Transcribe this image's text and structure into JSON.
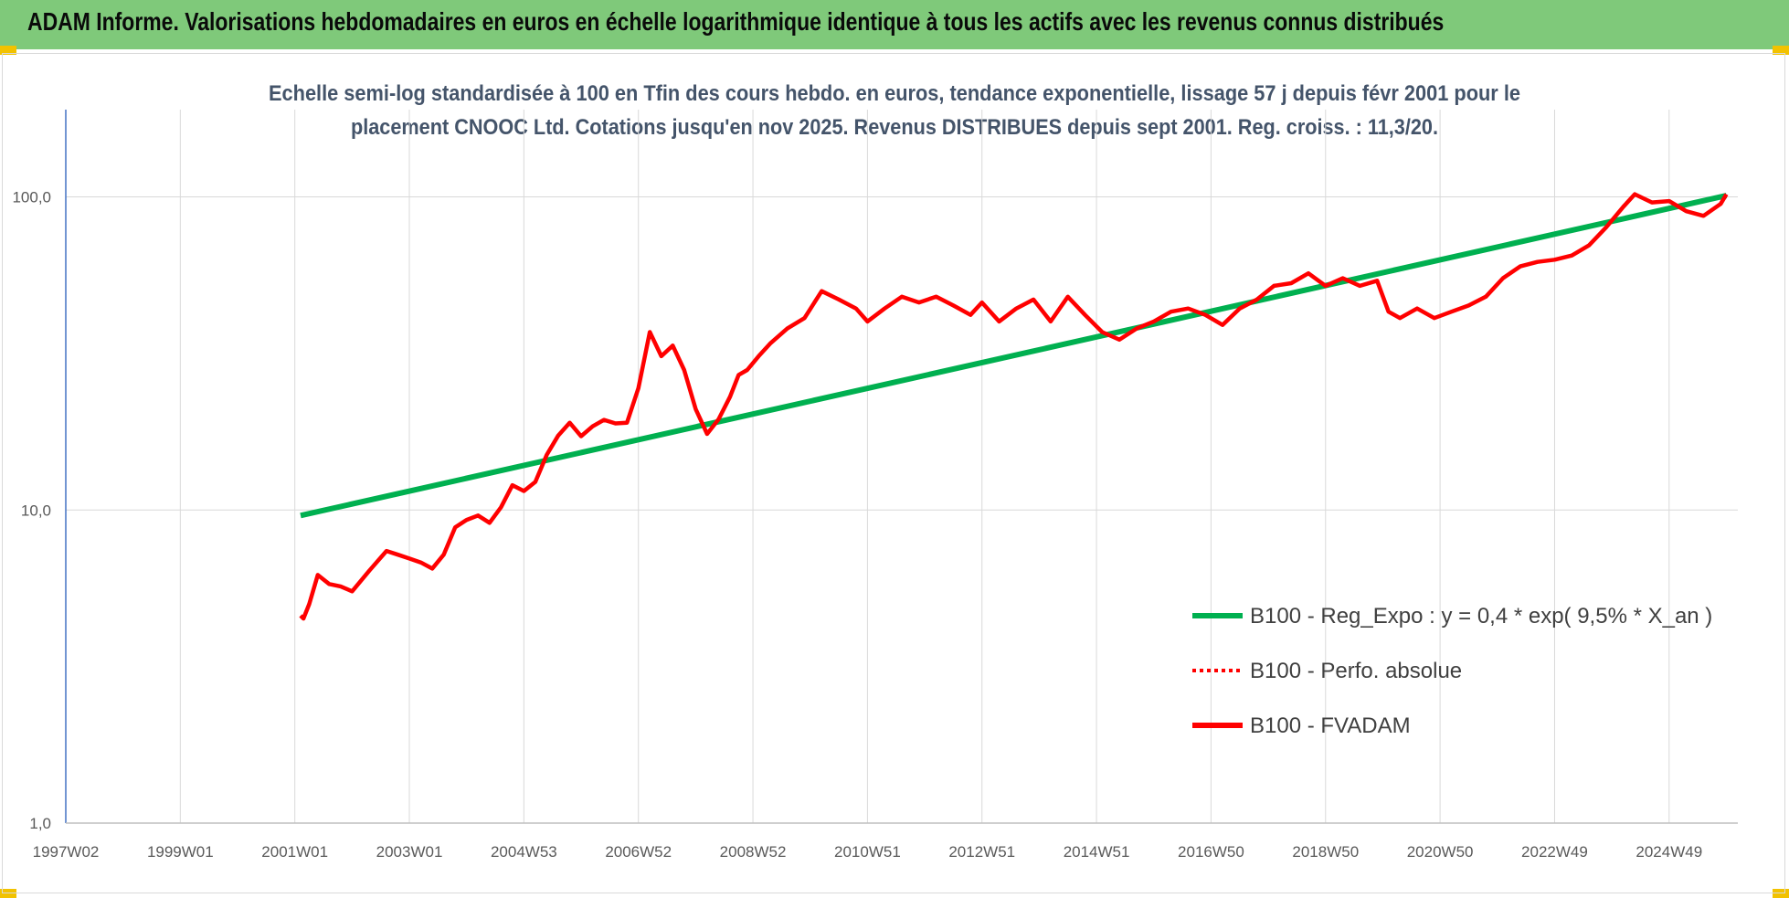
{
  "banner": {
    "title": "ADAM Informe. Valorisations hebdomadaires en euros en échelle logarithmique identique à tous les actifs avec les revenus connus distribués",
    "color": "#7fc97a"
  },
  "chart_data": {
    "type": "line",
    "title": "Echelle semi-log standardisée à 100 en Tfin des cours hebdo. en euros, tendance exponentielle, lissage 57 j depuis févr 2001 pour le placement CNOOC Ltd. Cotations jusqu'en nov 2025. Revenus DISTRIBUES depuis sept 2001. Reg. croiss. : 11,3/20.",
    "title_lines": [
      "Echelle semi-log standardisée à 100 en Tfin des cours hebdo. en euros, tendance exponentielle, lissage 57 j depuis févr 2001 pour le",
      "placement CNOOC Ltd. Cotations jusqu'en nov 2025. Revenus DISTRIBUES depuis sept 2001. Reg. croiss. : 11,3/20."
    ],
    "y_scale": "log",
    "ylim": [
      1,
      190
    ],
    "y_ticks": [
      1,
      10,
      100
    ],
    "y_tick_labels": [
      "1,0",
      "10,0",
      "100,0"
    ],
    "xlim": [
      1997.0,
      2026.2
    ],
    "x_ticks": [
      1997.0,
      1999.0,
      2001.0,
      2003.0,
      2005.0,
      2007.0,
      2009.0,
      2011.0,
      2013.0,
      2015.0,
      2017.0,
      2019.0,
      2021.0,
      2023.0,
      2025.0
    ],
    "x_tick_labels": [
      "1997W02",
      "1999W01",
      "2001W01",
      "2003W01",
      "2004W53",
      "2006W52",
      "2008W52",
      "2010W51",
      "2012W51",
      "2014W51",
      "2016W50",
      "2018W50",
      "2020W50",
      "2022W49",
      "2024W49"
    ],
    "grid": true,
    "legend_position": "right",
    "series": [
      {
        "name": "B100 - Reg_Expo : y = 0,4 * exp( 9,5% *  X_an )",
        "color": "#00b050",
        "style": "solid",
        "x": [
          2001.1,
          2026.0
        ],
        "y": [
          9.6,
          101
        ]
      },
      {
        "name": "B100 - Perfo. absolue",
        "color": "#ff0000",
        "style": "dotted",
        "x": [],
        "y": []
      },
      {
        "name": "B100 - FVADAM",
        "color": "#ff0000",
        "style": "solid",
        "x": [
          2001.1,
          2001.15,
          2001.25,
          2001.4,
          2001.6,
          2001.8,
          2002.0,
          2002.3,
          2002.6,
          2002.8,
          2003.0,
          2003.2,
          2003.4,
          2003.6,
          2003.8,
          2004.0,
          2004.2,
          2004.4,
          2004.6,
          2004.8,
          2005.0,
          2005.2,
          2005.4,
          2005.6,
          2005.8,
          2006.0,
          2006.2,
          2006.4,
          2006.6,
          2006.8,
          2007.0,
          2007.2,
          2007.4,
          2007.6,
          2007.8,
          2008.0,
          2008.2,
          2008.4,
          2008.6,
          2008.75,
          2008.9,
          2009.1,
          2009.3,
          2009.6,
          2009.9,
          2010.2,
          2010.5,
          2010.8,
          2011.0,
          2011.3,
          2011.6,
          2011.9,
          2012.2,
          2012.5,
          2012.8,
          2013.0,
          2013.3,
          2013.6,
          2013.9,
          2014.2,
          2014.5,
          2014.8,
          2015.1,
          2015.4,
          2015.7,
          2016.0,
          2016.3,
          2016.6,
          2016.9,
          2017.2,
          2017.5,
          2017.8,
          2018.1,
          2018.4,
          2018.7,
          2019.0,
          2019.3,
          2019.6,
          2019.9,
          2020.1,
          2020.3,
          2020.6,
          2020.9,
          2021.2,
          2021.5,
          2021.8,
          2022.1,
          2022.4,
          2022.7,
          2023.0,
          2023.3,
          2023.6,
          2023.9,
          2024.2,
          2024.4,
          2024.7,
          2025.0,
          2025.3,
          2025.6,
          2025.9,
          2026.0
        ],
        "y": [
          4.6,
          4.5,
          5.0,
          6.2,
          5.8,
          5.7,
          5.5,
          6.4,
          7.4,
          7.2,
          7.0,
          6.8,
          6.5,
          7.2,
          8.8,
          9.3,
          9.6,
          9.1,
          10.2,
          12.0,
          11.5,
          12.3,
          15.0,
          17.3,
          19.0,
          17.2,
          18.5,
          19.4,
          18.9,
          19.0,
          24.5,
          37.0,
          31.0,
          33.5,
          28.0,
          21.0,
          17.5,
          19.5,
          23.0,
          27.0,
          28.0,
          31.0,
          34.0,
          38.0,
          41.0,
          50.0,
          47.0,
          44.0,
          40.0,
          44.0,
          48.0,
          46.0,
          48.0,
          45.0,
          42.0,
          46.0,
          40.0,
          44.0,
          47.0,
          40.0,
          48.0,
          42.0,
          37.0,
          35.0,
          38.0,
          40.0,
          43.0,
          44.0,
          42.0,
          39.0,
          44.0,
          47.0,
          52.0,
          53.0,
          57.0,
          52.0,
          55.0,
          52.0,
          54.0,
          43.0,
          41.0,
          44.0,
          41.0,
          43.0,
          45.0,
          48.0,
          55.0,
          60.0,
          62.0,
          63.0,
          65.0,
          70.0,
          80.0,
          93.0,
          102.0,
          96.0,
          97.0,
          90.0,
          87.0,
          95.0,
          102.0
        ]
      }
    ]
  }
}
